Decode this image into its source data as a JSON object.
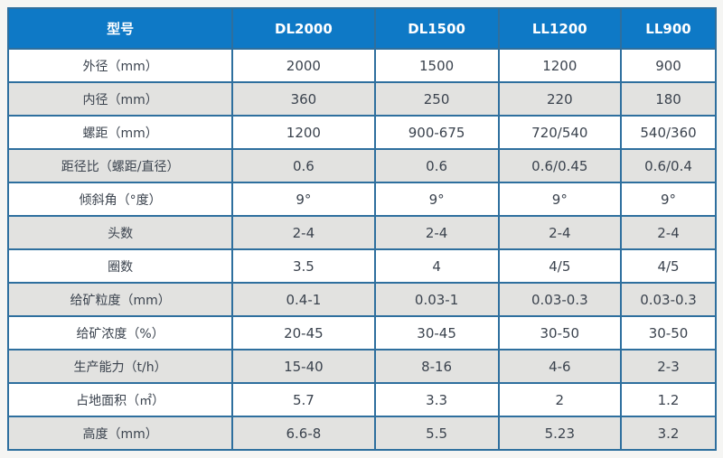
{
  "chart_data": {
    "type": "table",
    "title": "",
    "header": {
      "model_label": "型号",
      "columns": [
        "DL2000",
        "DL1500",
        "LL1200",
        "LL900"
      ]
    },
    "rows": [
      {
        "label": "外径（mm）",
        "values": [
          "2000",
          "1500",
          "1200",
          "900"
        ]
      },
      {
        "label": "内径（mm）",
        "values": [
          "360",
          "250",
          "220",
          "180"
        ]
      },
      {
        "label": "螺距（mm）",
        "values": [
          "1200",
          "900-675",
          "720/540",
          "540/360"
        ]
      },
      {
        "label": "距径比（螺距/直径）",
        "values": [
          "0.6",
          "0.6",
          "0.6/0.45",
          "0.6/0.4"
        ]
      },
      {
        "label": "倾斜角（°度）",
        "values": [
          "9°",
          "9°",
          "9°",
          "9°"
        ]
      },
      {
        "label": "头数",
        "values": [
          "2-4",
          "2-4",
          "2-4",
          "2-4"
        ]
      },
      {
        "label": "圈数",
        "values": [
          "3.5",
          "4",
          "4/5",
          "4/5"
        ]
      },
      {
        "label": "给矿粒度（mm）",
        "values": [
          "0.4-1",
          "0.03-1",
          "0.03-0.3",
          "0.03-0.3"
        ]
      },
      {
        "label": "给矿浓度（%）",
        "values": [
          "20-45",
          "30-45",
          "30-50",
          "30-50"
        ]
      },
      {
        "label": "生产能力（t/h）",
        "values": [
          "15-40",
          "8-16",
          "4-6",
          "2-3"
        ]
      },
      {
        "label": "占地面积（㎡）",
        "values": [
          "5.7",
          "3.3",
          "2",
          "1.2"
        ]
      },
      {
        "label": "高度（mm）",
        "values": [
          "6.6-8",
          "5.5",
          "5.23",
          "3.2"
        ]
      }
    ],
    "layout": {
      "grid": "on",
      "striped_rows": true
    },
    "colors": {
      "header_background": "#0e79c6",
      "header_text": "#ffffff",
      "border": "#2e6f9e",
      "row_even_background": "#e2e2e0",
      "row_odd_background": "#ffffff",
      "cell_text": "#3b434e",
      "page_background": "#f5f5f3"
    }
  }
}
